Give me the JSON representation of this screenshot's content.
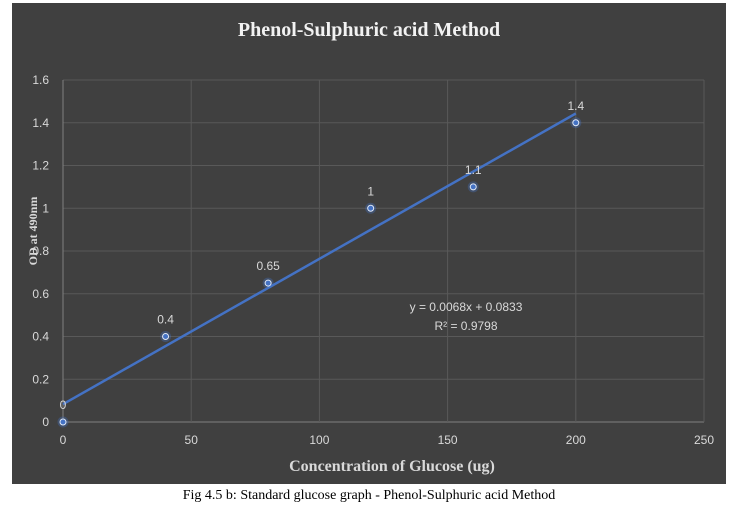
{
  "chart_data": {
    "type": "scatter",
    "title": "Phenol-Sulphuric acid Method",
    "xlabel": "Concentration of Glucose (ug)",
    "ylabel": "OD at 490nm",
    "xlim": [
      0,
      250
    ],
    "ylim": [
      0,
      1.6
    ],
    "xticks": [
      "0",
      "50",
      "100",
      "150",
      "200",
      "250"
    ],
    "yticks": [
      "0",
      "0.2",
      "0.4",
      "0.6",
      "0.8",
      "1",
      "1.2",
      "1.4",
      "1.6"
    ],
    "grid": true,
    "series": [
      {
        "x": [
          0,
          40,
          80,
          120,
          160,
          200
        ],
        "y": [
          0,
          0.4,
          0.65,
          1,
          1.1,
          1.4
        ],
        "labels": [
          "0",
          "0.4",
          "0.65",
          "1",
          "1.1",
          "1.4"
        ]
      }
    ],
    "trendline": {
      "type": "linear",
      "slope": 0.0068,
      "intercept": 0.0833,
      "equation": "y = 0.0068x + 0.0833",
      "r2": "R² = 0.9798"
    },
    "colors": {
      "background": "#404040",
      "marker": "#4472c4",
      "trendline": "#4472c4",
      "text": "#d9d9d9",
      "grid": "#595959"
    }
  },
  "caption": "Fig 4.5 b: Standard glucose graph - Phenol-Sulphuric acid Method"
}
